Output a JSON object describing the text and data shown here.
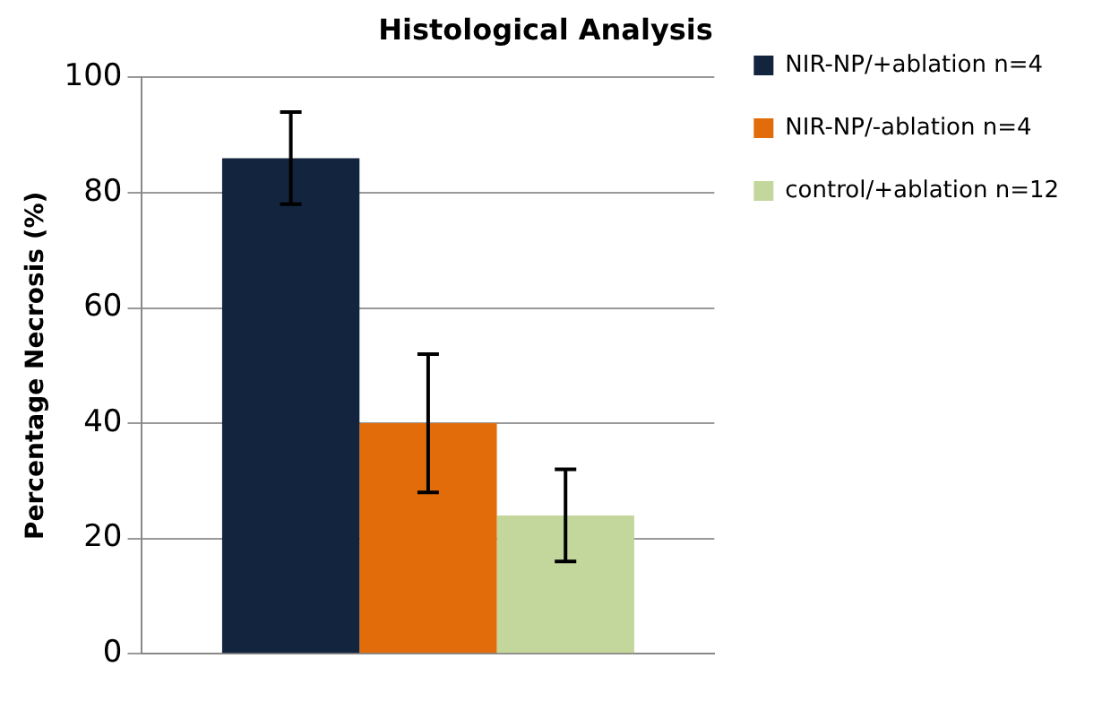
{
  "chart_data": {
    "type": "bar",
    "title": "Histological Analysis",
    "ylabel": "Percentage Necrosis (%)",
    "categories": [
      null
    ],
    "series": [
      {
        "name": "NIR-NP/+ablation n=4",
        "color": "#13243f",
        "values": [
          86
        ],
        "errors": [
          8
        ]
      },
      {
        "name": "NIR-NP/-ablation n=4",
        "color": "#e36c0a",
        "values": [
          40
        ],
        "errors": [
          12
        ]
      },
      {
        "name": "control/+ablation n=12",
        "color": "#c3d69b",
        "values": [
          24
        ],
        "errors": [
          8
        ]
      }
    ],
    "ylim": [
      0,
      100
    ],
    "yticks": [
      0,
      20,
      40,
      60,
      80,
      100
    ],
    "grid": "y",
    "legend": "top right"
  }
}
